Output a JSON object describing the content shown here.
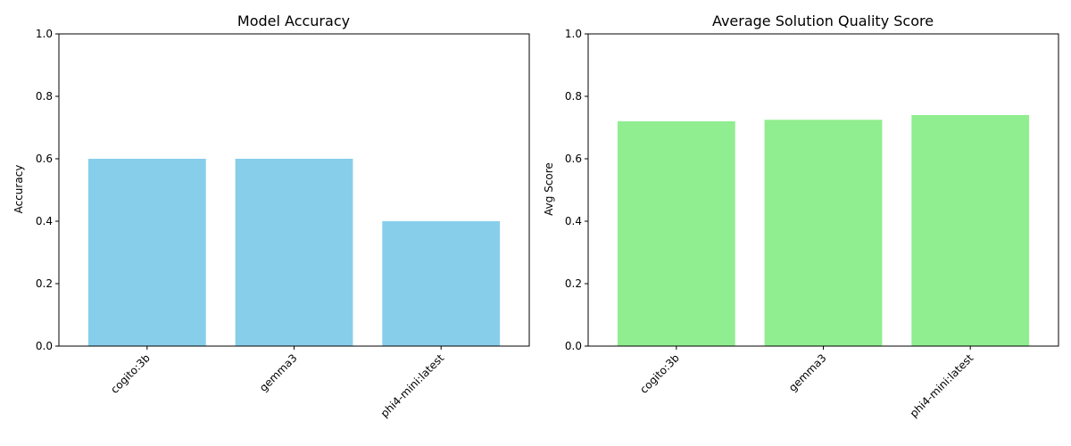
{
  "chart_data": [
    {
      "type": "bar",
      "title": "Model Accuracy",
      "xlabel": "",
      "ylabel": "Accuracy",
      "categories": [
        "cogito:3b",
        "gemma3",
        "phi4-mini:latest"
      ],
      "values": [
        0.6,
        0.6,
        0.4
      ],
      "ylim": [
        0,
        1
      ],
      "yticks": [
        "0.0",
        "0.2",
        "0.4",
        "0.6",
        "0.8",
        "1.0"
      ],
      "color": "#87ceeb",
      "grid": false,
      "xtick_rotation_deg": 45
    },
    {
      "type": "bar",
      "title": "Average Solution Quality Score",
      "xlabel": "",
      "ylabel": "Avg Score",
      "categories": [
        "cogito:3b",
        "gemma3",
        "phi4-mini:latest"
      ],
      "values": [
        0.72,
        0.725,
        0.74
      ],
      "ylim": [
        0,
        1
      ],
      "yticks": [
        "0.0",
        "0.2",
        "0.4",
        "0.6",
        "0.8",
        "1.0"
      ],
      "color": "#90ee90",
      "grid": false,
      "xtick_rotation_deg": 45
    }
  ]
}
